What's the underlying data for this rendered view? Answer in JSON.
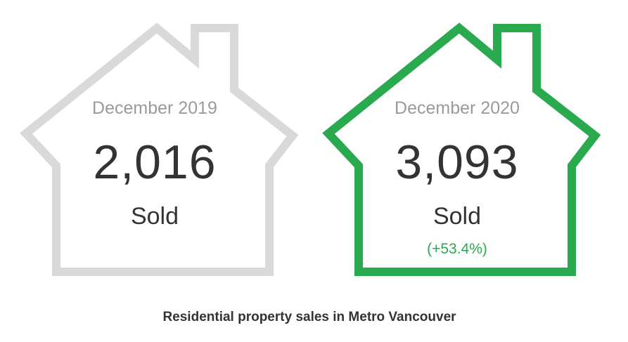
{
  "colors": {
    "previous_outline": "#d9d9d9",
    "current_outline": "#2aaa4f",
    "change_text": "#2aaa4f"
  },
  "chart_data": {
    "type": "table",
    "title": "Residential property sales in Metro Vancouver",
    "cards": [
      {
        "period": "December 2019",
        "value_label": "2,016",
        "value": 2016,
        "unit": "Sold",
        "change": ""
      },
      {
        "period": "December 2020",
        "value_label": "3,093",
        "value": 3093,
        "unit": "Sold",
        "change": "(+53.4%)",
        "change_value": 53.4
      }
    ]
  }
}
